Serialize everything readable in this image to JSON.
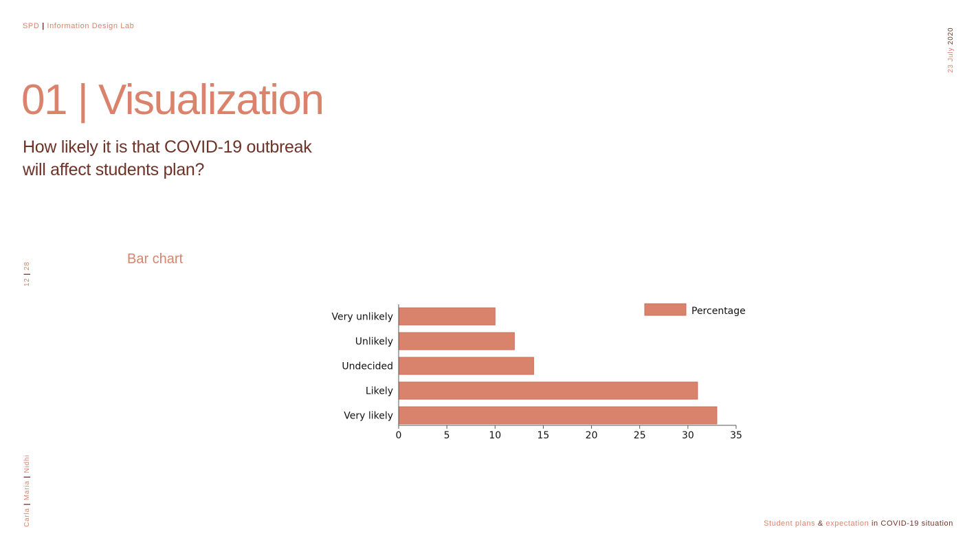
{
  "header": {
    "org": "SPD",
    "separator": "|",
    "lab": "Information Design Lab"
  },
  "date": {
    "day": "23",
    "month": "July",
    "year": "2020"
  },
  "page": {
    "current": "12",
    "separator": "|",
    "total": "28"
  },
  "authors": {
    "names": [
      "Carla",
      "Maria",
      "Nidhi"
    ],
    "separator": "|"
  },
  "title": "01 | Visualization",
  "question_line1": "How likely it is that COVID-19 outbreak",
  "question_line2": "will affect students plan?",
  "chart_heading": "Bar chart",
  "footer": {
    "part1": "Student plans",
    "amp": "&",
    "part2": "expectation",
    "part3": "in COVID-19 situation"
  },
  "colors": {
    "accent": "#d9826c",
    "dark": "#6e3328",
    "bar": "#d9826c",
    "bar_stroke": "#c8705b"
  },
  "chart_data": {
    "type": "bar",
    "orientation": "horizontal",
    "categories": [
      "Very unlikely",
      "Unlikely",
      "Undecided",
      "Likely",
      "Very likely"
    ],
    "series": [
      {
        "name": "Percentage",
        "values": [
          10,
          12,
          14,
          31,
          33
        ]
      }
    ],
    "xlim": [
      0,
      35
    ],
    "xticks": [
      0,
      5,
      10,
      15,
      20,
      25,
      30,
      35
    ],
    "grid": false,
    "legend": "top-right"
  }
}
